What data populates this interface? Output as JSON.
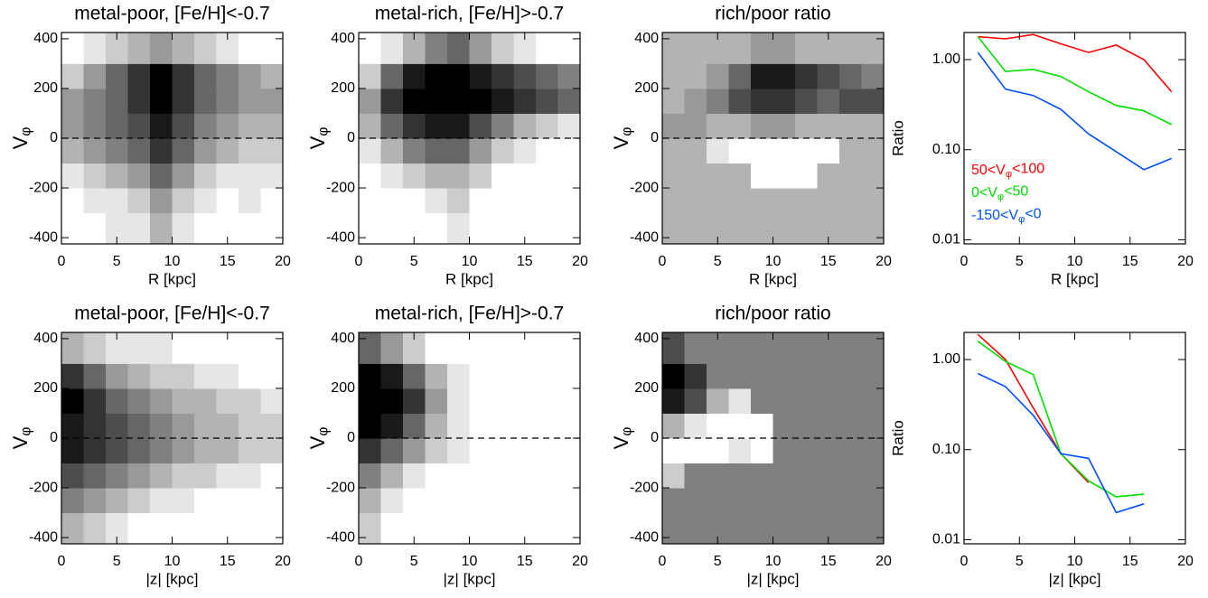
{
  "chart_data": [
    {
      "type": "heatmap",
      "title": "metal-poor, [Fe/H]<-0.7",
      "xlabel": "R [kpc]",
      "ylabel": "Vφ",
      "xlim": [
        0,
        20
      ],
      "ylim": [
        -425,
        425
      ],
      "xticks": [
        0,
        5,
        10,
        15,
        20
      ],
      "yticks": [
        -400,
        -200,
        0,
        200,
        400
      ],
      "xbins": [
        0,
        2,
        4,
        6,
        8,
        10,
        12,
        14,
        16,
        18,
        20
      ],
      "ybins": [
        -425,
        -300,
        -200,
        -100,
        0,
        100,
        200,
        300,
        425
      ],
      "z": [
        [
          0,
          0,
          0.1,
          0.1,
          0.3,
          0.1,
          0,
          0,
          0,
          0
        ],
        [
          0,
          0.1,
          0.1,
          0.2,
          0.4,
          0.2,
          0.1,
          0,
          0.1,
          0
        ],
        [
          0.1,
          0.2,
          0.3,
          0.4,
          0.6,
          0.4,
          0.2,
          0.1,
          0.1,
          0.1
        ],
        [
          0.3,
          0.4,
          0.5,
          0.6,
          0.8,
          0.6,
          0.4,
          0.3,
          0.2,
          0.2
        ],
        [
          0.4,
          0.5,
          0.6,
          0.7,
          0.9,
          0.7,
          0.5,
          0.4,
          0.3,
          0.3
        ],
        [
          0.4,
          0.5,
          0.6,
          0.8,
          1,
          0.8,
          0.6,
          0.5,
          0.4,
          0.4
        ],
        [
          0.2,
          0.4,
          0.6,
          0.8,
          1,
          0.8,
          0.6,
          0.5,
          0.4,
          0.3
        ],
        [
          0,
          0.1,
          0.2,
          0.3,
          0.4,
          0.3,
          0.2,
          0.1,
          0,
          0
        ]
      ]
    },
    {
      "type": "heatmap",
      "title": "metal-rich, [Fe/H]>-0.7",
      "xlabel": "R [kpc]",
      "ylabel": "Vφ",
      "xlim": [
        0,
        20
      ],
      "ylim": [
        -425,
        425
      ],
      "xticks": [
        0,
        5,
        10,
        15,
        20
      ],
      "yticks": [
        -400,
        -200,
        0,
        200,
        400
      ],
      "xbins": [
        0,
        2,
        4,
        6,
        8,
        10,
        12,
        14,
        16,
        18,
        20
      ],
      "ybins": [
        -425,
        -300,
        -200,
        -100,
        0,
        100,
        200,
        300,
        425
      ],
      "z": [
        [
          0,
          0,
          0,
          0,
          0.1,
          0,
          0,
          0,
          0,
          0
        ],
        [
          0,
          0,
          0,
          0.1,
          0.2,
          0,
          0,
          0,
          0,
          0
        ],
        [
          0,
          0.1,
          0.2,
          0.3,
          0.3,
          0.2,
          0,
          0,
          0,
          0
        ],
        [
          0.1,
          0.3,
          0.5,
          0.6,
          0.6,
          0.4,
          0.2,
          0.1,
          0,
          0
        ],
        [
          0.3,
          0.6,
          0.8,
          0.9,
          0.9,
          0.7,
          0.5,
          0.3,
          0.2,
          0.1
        ],
        [
          0.4,
          0.8,
          1,
          1,
          1,
          1,
          0.9,
          0.8,
          0.7,
          0.6
        ],
        [
          0.2,
          0.6,
          0.9,
          1,
          1,
          0.9,
          0.8,
          0.7,
          0.6,
          0.5
        ],
        [
          0,
          0.1,
          0.3,
          0.5,
          0.6,
          0.4,
          0.2,
          0.1,
          0,
          0
        ]
      ]
    },
    {
      "type": "heatmap",
      "title": "rich/poor ratio",
      "xlabel": "R [kpc]",
      "ylabel": "Vφ",
      "xlim": [
        0,
        20
      ],
      "ylim": [
        -425,
        425
      ],
      "xticks": [
        0,
        5,
        10,
        15,
        20
      ],
      "yticks": [
        -400,
        -200,
        0,
        200,
        400
      ],
      "xbins": [
        0,
        2,
        4,
        6,
        8,
        10,
        12,
        14,
        16,
        18,
        20
      ],
      "ybins": [
        -425,
        -300,
        -200,
        -100,
        0,
        100,
        200,
        300,
        425
      ],
      "z": [
        [
          0.3,
          0.3,
          0.3,
          0.3,
          0.3,
          0.3,
          0.3,
          0.3,
          0.3,
          0.3
        ],
        [
          0.3,
          0.3,
          0.3,
          0.3,
          0.3,
          0.3,
          0.3,
          0.3,
          0.3,
          0.3
        ],
        [
          0.3,
          0.3,
          0.3,
          0.3,
          0,
          0,
          0,
          0.3,
          0.3,
          0.3
        ],
        [
          0.3,
          0.3,
          0.1,
          0,
          0,
          0,
          0,
          0,
          0.3,
          0.3
        ],
        [
          0.4,
          0.4,
          0.3,
          0.3,
          0.4,
          0.4,
          0.3,
          0.3,
          0.3,
          0.3
        ],
        [
          0.3,
          0.4,
          0.5,
          0.7,
          0.8,
          0.8,
          0.7,
          0.6,
          0.7,
          0.7
        ],
        [
          0.3,
          0.3,
          0.4,
          0.6,
          0.9,
          0.9,
          0.8,
          0.7,
          0.6,
          0.5
        ],
        [
          0.3,
          0.3,
          0.3,
          0.3,
          0.4,
          0.4,
          0.3,
          0.3,
          0.3,
          0.3
        ]
      ]
    },
    {
      "type": "line",
      "xlabel": "R [kpc]",
      "ylabel": "Ratio",
      "log": true,
      "xlim": [
        0,
        20
      ],
      "ylim": [
        0.009,
        2.0
      ],
      "xticks": [
        0,
        5,
        10,
        15,
        20
      ],
      "yticks": [
        0.01,
        {
          "value": 0.1,
          "label": "0.10"
        },
        {
          "value": 1,
          "label": "1.00"
        }
      ],
      "x": [
        1.25,
        3.75,
        6.25,
        8.75,
        11.25,
        13.75,
        16.25,
        18.75
      ],
      "series": [
        {
          "name": "50<Vφ<100",
          "color": "#ff0000",
          "values": [
            1.8,
            1.7,
            1.9,
            1.5,
            1.2,
            1.45,
            1.0,
            0.44
          ]
        },
        {
          "name": "0<Vφ<50",
          "color": "#00e000",
          "values": [
            1.8,
            0.74,
            0.78,
            0.65,
            0.44,
            0.31,
            0.27,
            0.19
          ]
        },
        {
          "name": "-150<Vφ<0",
          "color": "#0050ff",
          "values": [
            1.2,
            0.47,
            0.4,
            0.28,
            0.15,
            0.095,
            0.06,
            0.08
          ]
        }
      ]
    },
    {
      "type": "heatmap",
      "title": "metal-poor, [Fe/H]<-0.7",
      "xlabel": "|z| [kpc]",
      "ylabel": "Vφ",
      "xlim": [
        0,
        20
      ],
      "ylim": [
        -425,
        425
      ],
      "xticks": [
        0,
        5,
        10,
        15,
        20
      ],
      "yticks": [
        -400,
        -200,
        0,
        200,
        400
      ],
      "xbins": [
        0,
        2,
        4,
        6,
        8,
        10,
        12,
        14,
        16,
        18,
        20
      ],
      "ybins": [
        -425,
        -300,
        -200,
        -100,
        0,
        100,
        200,
        300,
        425
      ],
      "z": [
        [
          0.3,
          0.2,
          0.1,
          0,
          0,
          0,
          0,
          0,
          0,
          0
        ],
        [
          0.5,
          0.4,
          0.3,
          0.2,
          0.1,
          0.1,
          0,
          0,
          0,
          0
        ],
        [
          0.7,
          0.6,
          0.5,
          0.4,
          0.3,
          0.2,
          0.2,
          0.1,
          0.1,
          0
        ],
        [
          0.9,
          0.8,
          0.7,
          0.6,
          0.5,
          0.4,
          0.3,
          0.3,
          0.2,
          0.2
        ],
        [
          0.9,
          0.8,
          0.7,
          0.6,
          0.5,
          0.4,
          0.3,
          0.3,
          0.2,
          0.2
        ],
        [
          1,
          0.8,
          0.6,
          0.5,
          0.4,
          0.3,
          0.3,
          0.2,
          0.2,
          0.1
        ],
        [
          0.8,
          0.6,
          0.4,
          0.3,
          0.2,
          0.2,
          0.1,
          0.1,
          0,
          0
        ],
        [
          0.3,
          0.2,
          0.1,
          0.1,
          0.1,
          0,
          0,
          0,
          0,
          0
        ]
      ]
    },
    {
      "type": "heatmap",
      "title": "metal-rich, [Fe/H]>-0.7",
      "xlabel": "|z| [kpc]",
      "ylabel": "Vφ",
      "xlim": [
        0,
        20
      ],
      "ylim": [
        -425,
        425
      ],
      "xticks": [
        0,
        5,
        10,
        15,
        20
      ],
      "yticks": [
        -400,
        -200,
        0,
        200,
        400
      ],
      "xbins": [
        0,
        2,
        4,
        6,
        8,
        10,
        12,
        14,
        16,
        18,
        20
      ],
      "ybins": [
        -425,
        -300,
        -200,
        -100,
        0,
        100,
        200,
        300,
        425
      ],
      "z": [
        [
          0.2,
          0,
          0,
          0,
          0,
          0,
          0,
          0,
          0,
          0
        ],
        [
          0.3,
          0.1,
          0,
          0,
          0,
          0,
          0,
          0,
          0,
          0
        ],
        [
          0.5,
          0.3,
          0.1,
          0,
          0,
          0,
          0,
          0,
          0,
          0
        ],
        [
          0.8,
          0.6,
          0.4,
          0.2,
          0.1,
          0,
          0,
          0,
          0,
          0
        ],
        [
          1,
          0.9,
          0.6,
          0.3,
          0.1,
          0,
          0,
          0,
          0,
          0
        ],
        [
          1,
          1,
          0.8,
          0.4,
          0.1,
          0,
          0,
          0,
          0,
          0
        ],
        [
          1,
          0.9,
          0.6,
          0.3,
          0.1,
          0,
          0,
          0,
          0,
          0
        ],
        [
          0.6,
          0.4,
          0.2,
          0,
          0,
          0,
          0,
          0,
          0,
          0
        ]
      ]
    },
    {
      "type": "heatmap",
      "title": "rich/poor ratio",
      "xlabel": "|z| [kpc]",
      "ylabel": "Vφ",
      "xlim": [
        0,
        20
      ],
      "ylim": [
        -425,
        425
      ],
      "xticks": [
        0,
        5,
        10,
        15,
        20
      ],
      "yticks": [
        -400,
        -200,
        0,
        200,
        400
      ],
      "xbins": [
        0,
        2,
        4,
        6,
        8,
        10,
        12,
        14,
        16,
        18,
        20
      ],
      "ybins": [
        -425,
        -300,
        -200,
        -100,
        0,
        100,
        200,
        300,
        425
      ],
      "z": [
        [
          0.5,
          0.5,
          0.5,
          0.5,
          0.5,
          0.5,
          0.5,
          0.5,
          0.5,
          0.5
        ],
        [
          0.5,
          0.5,
          0.5,
          0.5,
          0.5,
          0.5,
          0.5,
          0.5,
          0.5,
          0.5
        ],
        [
          0.2,
          0.5,
          0.5,
          0.5,
          0.5,
          0.5,
          0.5,
          0.5,
          0.5,
          0.5
        ],
        [
          0,
          0,
          0,
          0.1,
          0,
          0.5,
          0.5,
          0.5,
          0.5,
          0.5
        ],
        [
          0.3,
          0.1,
          0,
          0,
          0,
          0.5,
          0.5,
          0.5,
          0.5,
          0.5
        ],
        [
          0.9,
          0.7,
          0.3,
          0.1,
          0.5,
          0.5,
          0.5,
          0.5,
          0.5,
          0.5
        ],
        [
          1,
          0.8,
          0.5,
          0.5,
          0.5,
          0.5,
          0.5,
          0.5,
          0.5,
          0.5
        ],
        [
          0.7,
          0.5,
          0.5,
          0.5,
          0.5,
          0.5,
          0.5,
          0.5,
          0.5,
          0.5
        ]
      ]
    },
    {
      "type": "line",
      "xlabel": "|z| [kpc]",
      "ylabel": "Ratio",
      "log": true,
      "xlim": [
        0,
        20
      ],
      "ylim": [
        0.009,
        2.0
      ],
      "xticks": [
        0,
        5,
        10,
        15,
        20
      ],
      "yticks": [
        0.01,
        {
          "value": 0.1,
          "label": "0.10"
        },
        {
          "value": 1,
          "label": "1.00"
        }
      ],
      "x": [
        1.25,
        3.75,
        6.25,
        8.75,
        11.25,
        13.75,
        16.25
      ],
      "series": [
        {
          "color": "#ff0000",
          "values": [
            1.9,
            1.0,
            0.29,
            0.09,
            0.043,
            null,
            null
          ]
        },
        {
          "color": "#00e000",
          "values": [
            1.6,
            0.95,
            0.68,
            0.09,
            0.045,
            0.03,
            0.032
          ]
        },
        {
          "color": "#0050ff",
          "values": [
            0.7,
            0.5,
            0.24,
            0.09,
            0.08,
            0.02,
            0.025
          ]
        }
      ]
    }
  ]
}
